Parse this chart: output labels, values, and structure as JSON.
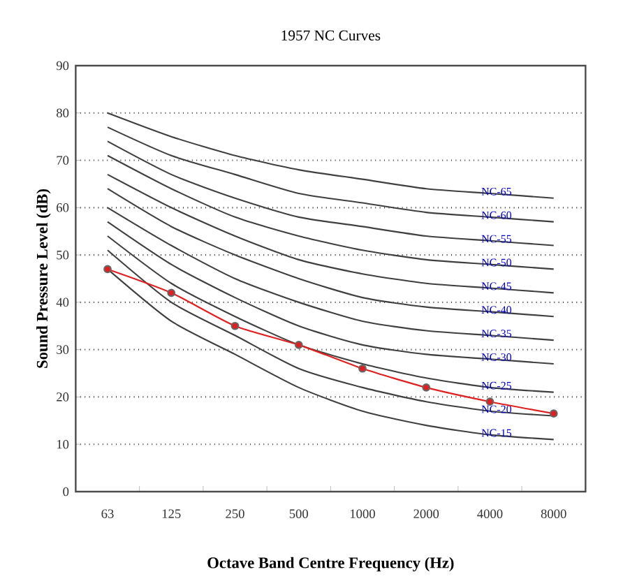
{
  "chart_data": {
    "type": "line",
    "title": "1957 NC Curves",
    "xlabel": "Octave Band Centre Frequency (Hz)",
    "ylabel": "Sound Pressure Level (dB)",
    "categories": [
      "63",
      "125",
      "250",
      "500",
      "1000",
      "2000",
      "4000",
      "8000"
    ],
    "ylim": [
      0,
      90
    ],
    "yticks": [
      0,
      10,
      20,
      30,
      40,
      50,
      60,
      70,
      80,
      90
    ],
    "grid": "y",
    "legend": false,
    "marker": "none",
    "line_style": "solid",
    "series": [
      {
        "name": "NC-65",
        "color": "#404040",
        "values": [
          80,
          75,
          71,
          68,
          66,
          64,
          63,
          62
        ]
      },
      {
        "name": "NC-60",
        "color": "#404040",
        "values": [
          77,
          71,
          67,
          63,
          61,
          59,
          58,
          57
        ]
      },
      {
        "name": "NC-55",
        "color": "#404040",
        "values": [
          74,
          67,
          62,
          58,
          56,
          54,
          53,
          52
        ]
      },
      {
        "name": "NC-50",
        "color": "#404040",
        "values": [
          71,
          64,
          58,
          54,
          51,
          49,
          48,
          47
        ]
      },
      {
        "name": "NC-45",
        "color": "#404040",
        "values": [
          67,
          60,
          54,
          49,
          46,
          44,
          43,
          42
        ]
      },
      {
        "name": "NC-40",
        "color": "#404040",
        "values": [
          64,
          56,
          50,
          45,
          41,
          39,
          38,
          37
        ]
      },
      {
        "name": "NC-35",
        "color": "#404040",
        "values": [
          60,
          52,
          45,
          40,
          36,
          34,
          33,
          32
        ]
      },
      {
        "name": "NC-30",
        "color": "#404040",
        "values": [
          57,
          48,
          41,
          35,
          31,
          29,
          28,
          27
        ]
      },
      {
        "name": "NC-25",
        "color": "#404040",
        "values": [
          54,
          44,
          37,
          31,
          27,
          24,
          22,
          21
        ]
      },
      {
        "name": "NC-20",
        "color": "#404040",
        "values": [
          51,
          40,
          33,
          26,
          22,
          19,
          17,
          16
        ]
      },
      {
        "name": "NC-15",
        "color": "#404040",
        "values": [
          47,
          36,
          29,
          22,
          17,
          14,
          12,
          11
        ]
      },
      {
        "color": "#e02020",
        "marker": "circle",
        "values": [
          47,
          42,
          35,
          31,
          26,
          22,
          19,
          16.5
        ]
      }
    ]
  }
}
